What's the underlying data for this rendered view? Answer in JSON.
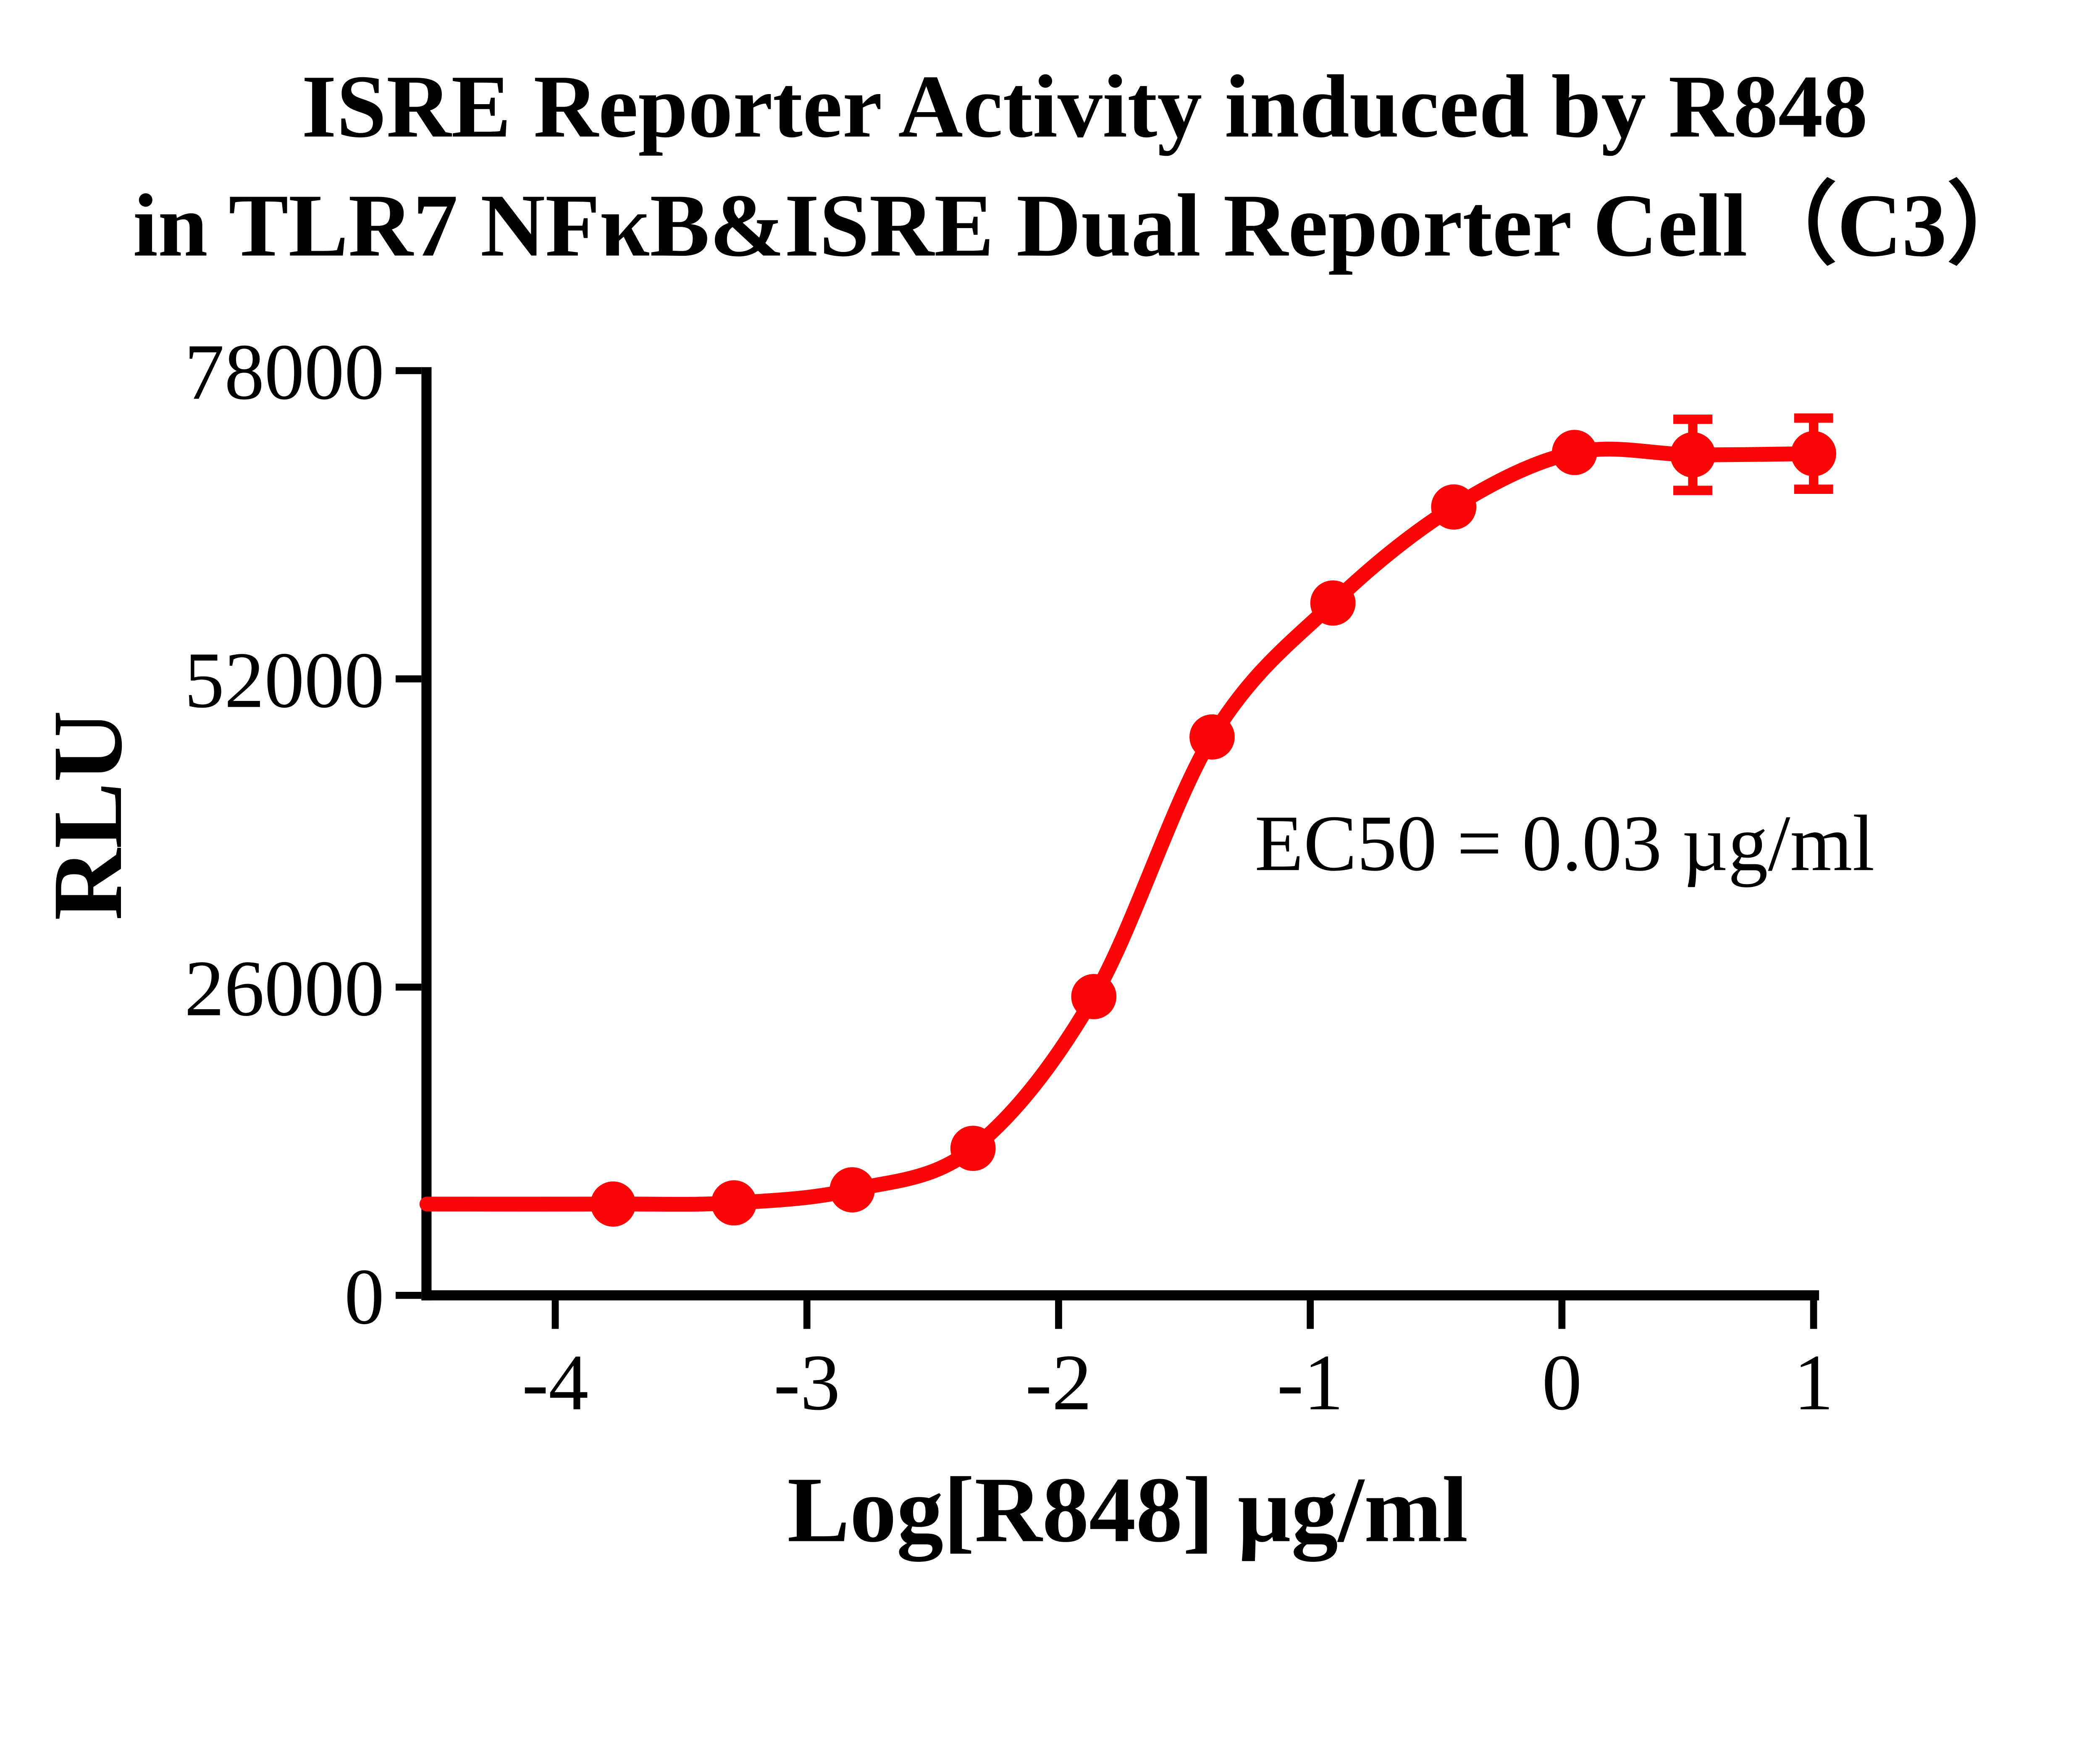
{
  "chart_data": {
    "type": "scatter",
    "title_line1": "ISRE Reporter Activity induced by R848",
    "title_line2": "in TLR7 NFκB&ISRE Dual Reporter Cell（C3）",
    "xlabel": "Log[R848] µg/ml",
    "ylabel": "RLU",
    "annotation": "EC50 = 0.03 µg/ml",
    "ec50": "0.03 µg/ml",
    "x_ticks": [
      -4,
      -3,
      -2,
      -1,
      0,
      1
    ],
    "x_tick_labels": [
      "-4",
      "-3",
      "-2",
      "-1",
      "0",
      "1"
    ],
    "y_ticks": [
      0,
      26000,
      52000,
      78000
    ],
    "y_tick_labels": [
      "0",
      "26000",
      "52000",
      "78000"
    ],
    "xlim": [
      -4.51,
      1.09
    ],
    "ylim": [
      0,
      78000
    ],
    "grid": false,
    "legend_position": "none",
    "curve_x_range": [
      -4.51,
      1.0
    ],
    "fit": {
      "model": "4PL sigmoidal dose-response",
      "bottom": 7650,
      "top": 71200,
      "log_ec50": -1.52,
      "hill": 1.3
    },
    "series": [
      {
        "name": "R848",
        "color": "#fb0707",
        "marker": "circle",
        "x": [
          -3.77,
          -3.29,
          -2.82,
          -2.34,
          -1.86,
          -1.39,
          -0.91,
          -0.43,
          0.05,
          0.52,
          1.0
        ],
        "y": [
          7700,
          7800,
          8900,
          12400,
          25200,
          47100,
          58400,
          66500,
          71100,
          70900,
          71000
        ],
        "error": [
          0,
          0,
          0,
          0,
          0,
          0,
          0,
          0,
          0,
          3000,
          3000
        ]
      }
    ]
  }
}
